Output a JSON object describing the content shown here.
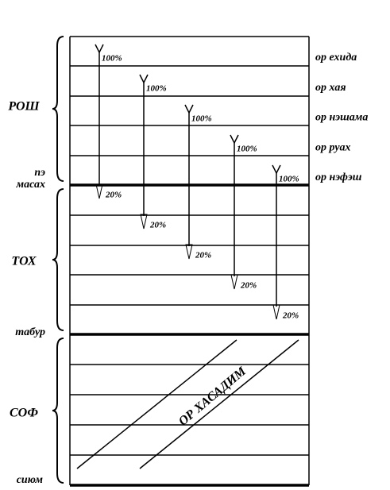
{
  "left_labels": {
    "rosh": "РОШ",
    "pe": "пэ",
    "masah": "масах",
    "toh": "ТОХ",
    "tabur": "табур",
    "sof": "СОФ",
    "siyum": "сиюм"
  },
  "lights": [
    {
      "name": "ор ехида",
      "top": "100%",
      "bottom": "20%"
    },
    {
      "name": "ор хая",
      "top": "100%",
      "bottom": "20%"
    },
    {
      "name": "ор нэшама",
      "top": "100%",
      "bottom": "20%"
    },
    {
      "name": "ор руах",
      "top": "100%",
      "bottom": "20%"
    },
    {
      "name": "ор нэфэш",
      "top": "100%",
      "bottom": "20%"
    }
  ],
  "diagonal_label": "ОР ХАСАДИМ"
}
